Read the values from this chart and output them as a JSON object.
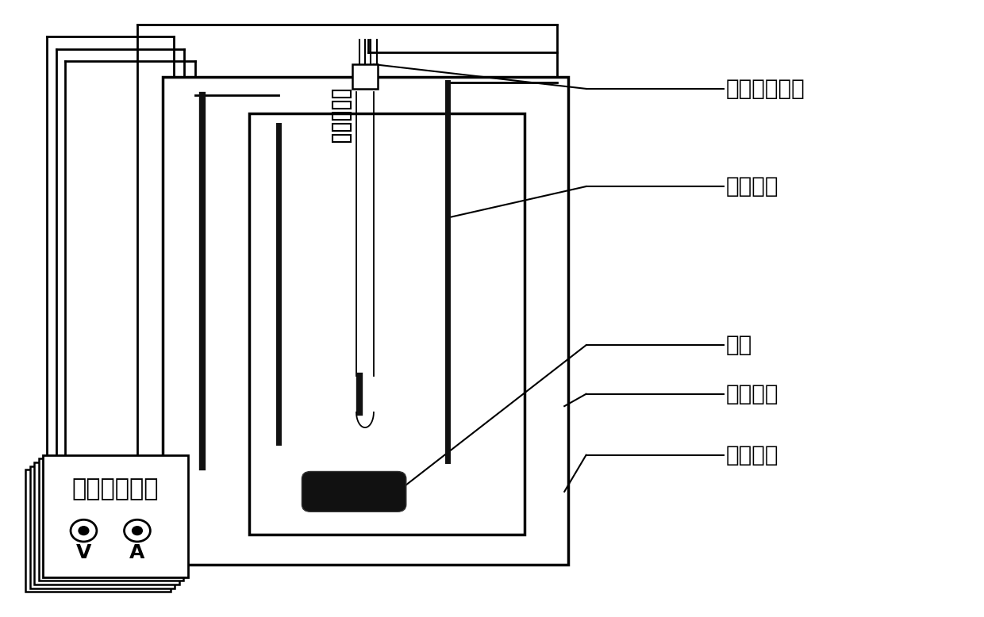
{
  "bg_color": "#ffffff",
  "line_color": "#000000",
  "labels": {
    "saturated_calomel": "饱和甘汞电极",
    "working_electrode": "工作电极",
    "magnet": "磁子",
    "water_bath": "恒温水浴",
    "auxiliary_electrode": "辅助电极",
    "workstation": "电化学工作站",
    "V": "V",
    "A": "A"
  },
  "font_size_labels": 20,
  "font_size_workstation": 22,
  "font_size_VA": 18
}
